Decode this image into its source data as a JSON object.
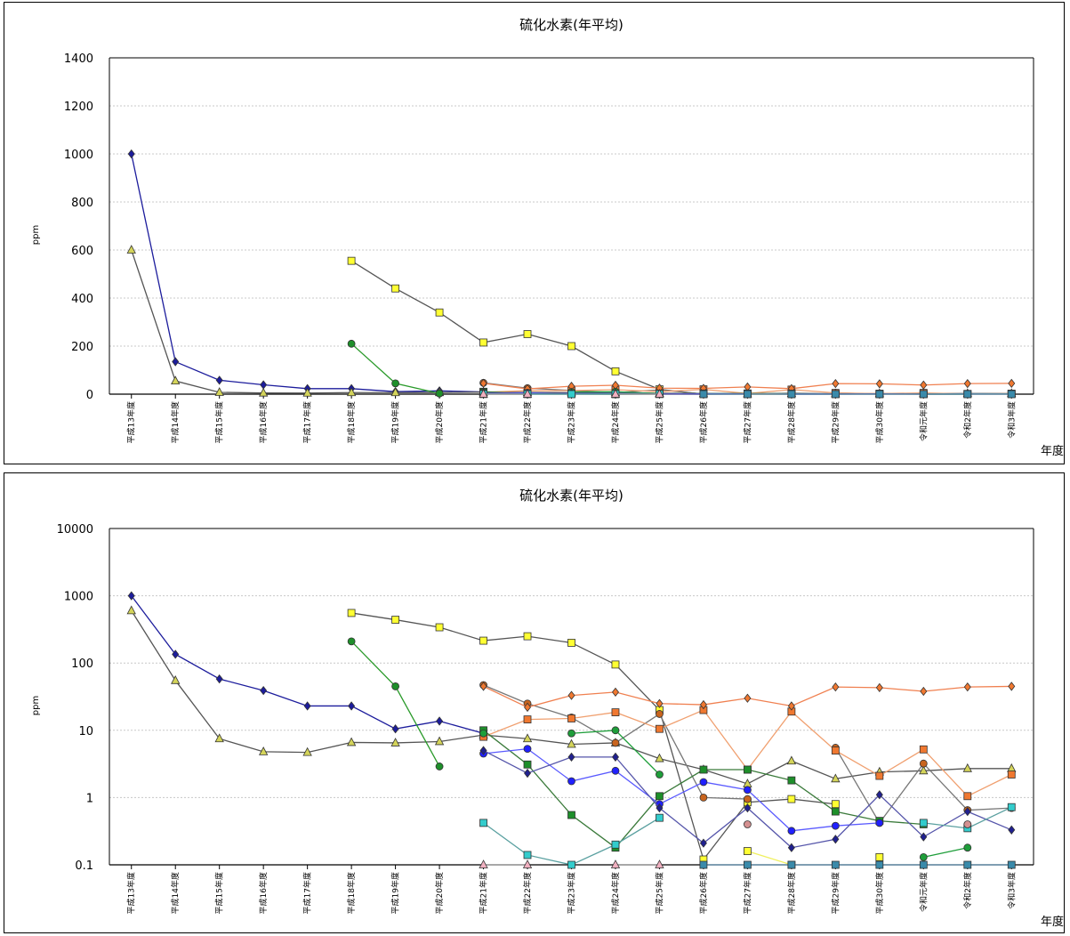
{
  "charts": [
    {
      "title": "硫化水素(年平均)",
      "ylabel": "ppm",
      "xlabel": "年度",
      "scale": "linear",
      "ylim": [
        0,
        1400
      ],
      "yticks": [
        0,
        200,
        400,
        600,
        800,
        1000,
        1200,
        1400
      ],
      "ytick_labels": [
        "0",
        "200",
        "400",
        "600",
        "800",
        "1000",
        "1200",
        "1400"
      ]
    },
    {
      "title": "硫化水素(年平均)",
      "ylabel": "ppm",
      "xlabel": "年度",
      "scale": "log",
      "ylim": [
        0.1,
        10000
      ],
      "yticks": [
        0.1,
        1,
        10,
        100,
        1000,
        10000
      ],
      "ytick_labels": [
        "0.1",
        "1",
        "10",
        "100",
        "1000",
        "10000"
      ]
    }
  ],
  "chart_data": {
    "type": "line",
    "categories": [
      "平成13年度",
      "平成14年度",
      "平成15年度",
      "平成16年度",
      "平成17年度",
      "平成18年度",
      "平成19年度",
      "平成20年度",
      "平成21年度",
      "平成22年度",
      "平成23年度",
      "平成24年度",
      "平成25年度",
      "平成26年度",
      "平成27年度",
      "平成28年度",
      "平成29年度",
      "平成30年度",
      "令和元年度",
      "令和2年度",
      "令和3年度"
    ],
    "grid": true,
    "series": [
      {
        "color": "#1c1c9c",
        "marker": "diamond",
        "fill": "#1c1c9c",
        "values": [
          1000,
          135,
          58,
          39,
          23,
          23,
          10.5,
          13.7,
          9,
          null,
          null,
          null,
          null,
          null,
          null,
          null,
          null,
          null,
          null,
          null,
          null
        ]
      },
      {
        "color": "#555555",
        "marker": "triangle",
        "fill": "#d4d45a",
        "values": [
          600,
          55,
          7.5,
          4.8,
          4.7,
          6.6,
          6.5,
          6.8,
          8.5,
          7.5,
          6.2,
          6.5,
          3.8,
          2.6,
          1.6,
          3.5,
          1.9,
          2.4,
          2.5,
          2.7,
          2.7
        ]
      },
      {
        "color": "#555555",
        "marker": "square",
        "fill": "#ffff33",
        "values": [
          null,
          null,
          null,
          null,
          null,
          555,
          440,
          340,
          215,
          250,
          200,
          95,
          20,
          0.12,
          0.85,
          0.95,
          0.8,
          null,
          null,
          null,
          null
        ]
      },
      {
        "color": "#2a9a2a",
        "marker": "circle",
        "fill": "#1e8f2a",
        "values": [
          null,
          null,
          null,
          null,
          null,
          210,
          45,
          2.9,
          null,
          null,
          null,
          null,
          null,
          null,
          null,
          null,
          null,
          null,
          null,
          null,
          null
        ]
      },
      {
        "color": "#777777",
        "marker": "circle",
        "fill": "#c8641e",
        "values": [
          null,
          null,
          null,
          null,
          null,
          null,
          null,
          null,
          47,
          25,
          15.5,
          6.5,
          17.5,
          1.0,
          0.95,
          null,
          5.5,
          0.42,
          3.2,
          0.65,
          0.7
        ]
      },
      {
        "color": "#f0a070",
        "marker": "square",
        "fill": "#f07830",
        "values": [
          null,
          null,
          null,
          null,
          null,
          null,
          null,
          null,
          8,
          14.5,
          15,
          18.5,
          10.5,
          20,
          2.6,
          19,
          5,
          2.1,
          5.2,
          1.05,
          2.2
        ]
      },
      {
        "color": "#f08050",
        "marker": "diamond",
        "fill": "#f07830",
        "values": [
          null,
          null,
          null,
          null,
          null,
          null,
          null,
          null,
          45,
          22,
          33,
          37,
          25,
          24,
          30,
          23,
          44,
          43,
          38,
          44,
          45
        ]
      },
      {
        "color": "#3a7a3a",
        "marker": "square",
        "fill": "#1e8f2a",
        "values": [
          null,
          null,
          null,
          null,
          null,
          null,
          null,
          null,
          10,
          3.1,
          0.55,
          0.18,
          1.05,
          2.6,
          2.6,
          1.8,
          0.62,
          0.45,
          0.4,
          null,
          null
        ]
      },
      {
        "color": "#1e9e3a",
        "marker": "circle",
        "fill": "#1e9e3a",
        "values": [
          null,
          null,
          null,
          null,
          null,
          null,
          null,
          null,
          9,
          null,
          9,
          10,
          2.2,
          null,
          null,
          null,
          null,
          null,
          0.13,
          0.18,
          null
        ]
      },
      {
        "color": "#5a5aff",
        "marker": "circle",
        "fill": "#2020ff",
        "values": [
          null,
          null,
          null,
          null,
          null,
          null,
          null,
          null,
          4.5,
          5.3,
          1.75,
          2.5,
          0.8,
          1.7,
          1.3,
          0.32,
          0.38,
          0.42,
          null,
          null,
          null
        ]
      },
      {
        "color": "#5555aa",
        "marker": "diamond",
        "fill": "#202090",
        "values": [
          null,
          null,
          null,
          null,
          null,
          null,
          null,
          null,
          5,
          2.3,
          4,
          4,
          0.7,
          0.21,
          0.7,
          0.18,
          0.24,
          1.1,
          0.26,
          0.62,
          0.33
        ]
      },
      {
        "color": "#5aa0a0",
        "marker": "square",
        "fill": "#33cccc",
        "values": [
          null,
          null,
          null,
          null,
          null,
          null,
          null,
          null,
          0.42,
          0.14,
          0.1,
          0.2,
          0.5,
          null,
          null,
          null,
          null,
          null,
          0.42,
          0.35,
          0.72
        ]
      },
      {
        "color": "#f0f060",
        "marker": "square",
        "fill": "#ffff33",
        "values": [
          null,
          null,
          null,
          null,
          null,
          null,
          null,
          null,
          null,
          null,
          null,
          null,
          null,
          null,
          0.16,
          0.1,
          null,
          0.13,
          null,
          null,
          null
        ]
      },
      {
        "color": "#b07080",
        "marker": "circle",
        "fill": "#d49090",
        "values": [
          null,
          null,
          null,
          null,
          null,
          null,
          null,
          null,
          null,
          null,
          null,
          null,
          null,
          null,
          0.4,
          null,
          null,
          null,
          null,
          0.4,
          null
        ]
      },
      {
        "color": "#9a9a9a",
        "marker": "triangle",
        "fill": "#f0b0c0",
        "values": [
          null,
          null,
          null,
          null,
          null,
          null,
          null,
          null,
          0.1,
          0.1,
          null,
          0.1,
          0.1,
          null,
          null,
          null,
          null,
          null,
          null,
          null,
          null
        ]
      },
      {
        "color": "#5a8aaa",
        "marker": "square",
        "fill": "#3a8aaa",
        "values": [
          null,
          null,
          null,
          null,
          null,
          null,
          null,
          null,
          null,
          null,
          null,
          null,
          null,
          0.1,
          0.1,
          0.1,
          0.1,
          0.1,
          0.1,
          0.1,
          0.1
        ]
      }
    ]
  }
}
